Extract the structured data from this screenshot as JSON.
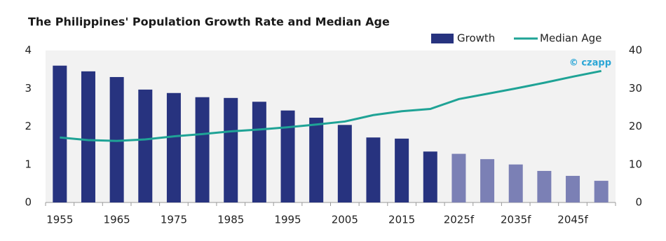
{
  "chart_data": {
    "type": "bar_line",
    "title": "The Philippines' Population Growth Rate and Median Age",
    "annotation": "© czapp",
    "categories": [
      "1955",
      null,
      "1965",
      null,
      "1975",
      null,
      "1985",
      null,
      "1995",
      null,
      "2005",
      null,
      "2015",
      null,
      "2025f",
      null,
      "2035f",
      null,
      "2045f",
      null
    ],
    "series": [
      {
        "name": "Growth",
        "type": "bar",
        "color": "#27337f",
        "colors": [
          "#27337f",
          "#27337f",
          "#27337f",
          "#27337f",
          "#27337f",
          "#27337f",
          "#27337f",
          "#27337f",
          "#27337f",
          "#27337f",
          "#27337f",
          "#27337f",
          "#27337f",
          "#27337f",
          "#7b80b5",
          "#7b80b5",
          "#7b80b5",
          "#7b80b5",
          "#7b80b5",
          "#7b80b5"
        ],
        "values": [
          3.6,
          3.45,
          3.3,
          2.97,
          2.88,
          2.77,
          2.75,
          2.65,
          2.42,
          2.23,
          2.04,
          1.71,
          1.68,
          1.34,
          1.28,
          1.14,
          1.0,
          0.83,
          0.7,
          0.57
        ]
      },
      {
        "name": "Median Age",
        "type": "line",
        "axis": "y2",
        "color": "#1fa396",
        "values": [
          17.1,
          16.4,
          16.2,
          16.6,
          17.4,
          18.0,
          18.7,
          19.2,
          19.8,
          20.5,
          21.3,
          23.0,
          24.0,
          24.6,
          27.2,
          28.6,
          30.0,
          31.5,
          33.1,
          34.6
        ]
      }
    ],
    "ylim": [
      0,
      4
    ],
    "yticks": [
      0,
      1,
      2,
      3,
      4
    ],
    "y2lim": [
      0,
      40
    ],
    "y2ticks": [
      0,
      10,
      20,
      30,
      40
    ],
    "legend": "top-right",
    "plot_background": "#f2f2f2"
  }
}
